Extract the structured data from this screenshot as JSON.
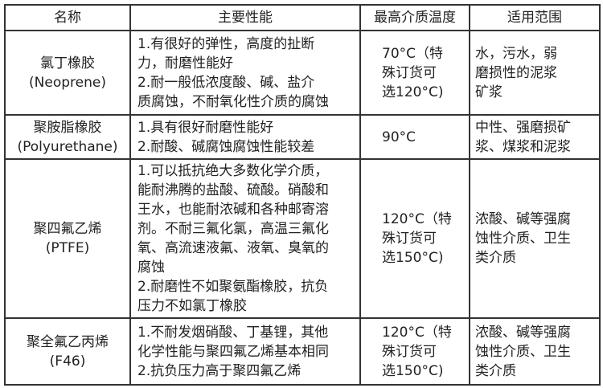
{
  "headers": [
    "名称",
    "主要性能",
    "最高介质温度",
    "适用范围"
  ],
  "rows": [
    {
      "name": [
        "氯丁橡胶",
        "(Neoprene)"
      ],
      "performance": [
        "1.有很好的弹性，高度的扯断",
        "力，耐磨性能好",
        "2.耐一般低浓度酸、碱、盐介",
        "质腐蚀，不耐氧化性介质的腐蚀"
      ],
      "temperature": [
        "70°C（特",
        "殊订货可",
        "选120°C)"
      ],
      "application": [
        "水，污水，弱",
        "磨损性的泥浆",
        "矿浆"
      ]
    },
    {
      "name": [
        "聚胺脂橡胶",
        "(Polyurethane)"
      ],
      "performance": [
        "1.具有很好耐磨性能好",
        "2.耐酸、碱腐蚀腐蚀性能较差"
      ],
      "temperature": [
        "90°C"
      ],
      "application": [
        "中性、强磨损矿",
        "浆、煤浆和泥浆"
      ]
    },
    {
      "name": [
        "聚四氟乙烯",
        "(PTFE)"
      ],
      "performance": [
        "1.可以抵抗绝大多数化学介质，",
        "能耐沸腾的盐酸、硫酸。硝酸和",
        "王水，也能耐浓碱和各种邮寄溶",
        "剂。不耐三氟化氯，高温三氟化",
        "氧、高流速液氟、液氧、臭氧的",
        "腐蚀",
        "2.耐磨性不如聚氨酯橡胶，抗负",
        "压力不如氯丁橡胶"
      ],
      "temperature": [
        "120°C（特",
        "殊订货可",
        "选150°C)"
      ],
      "application": [
        "浓酸、碱等强腐",
        "蚀性介质、卫生",
        "类介质"
      ]
    },
    {
      "name": [
        "聚全氟乙丙烯",
        "(F46)"
      ],
      "performance": [
        "1.不耐发烟硝酸、丁基锂，其他",
        "化学性能与聚四氟乙烯基本相同",
        "2.抗负压力高于聚四氟乙烯"
      ],
      "temperature": [
        "120°C（特",
        "殊订货可",
        "选150°C)"
      ],
      "application": [
        "浓酸、碱等强腐",
        "蚀性介质、卫生",
        "类介质"
      ]
    }
  ]
}
